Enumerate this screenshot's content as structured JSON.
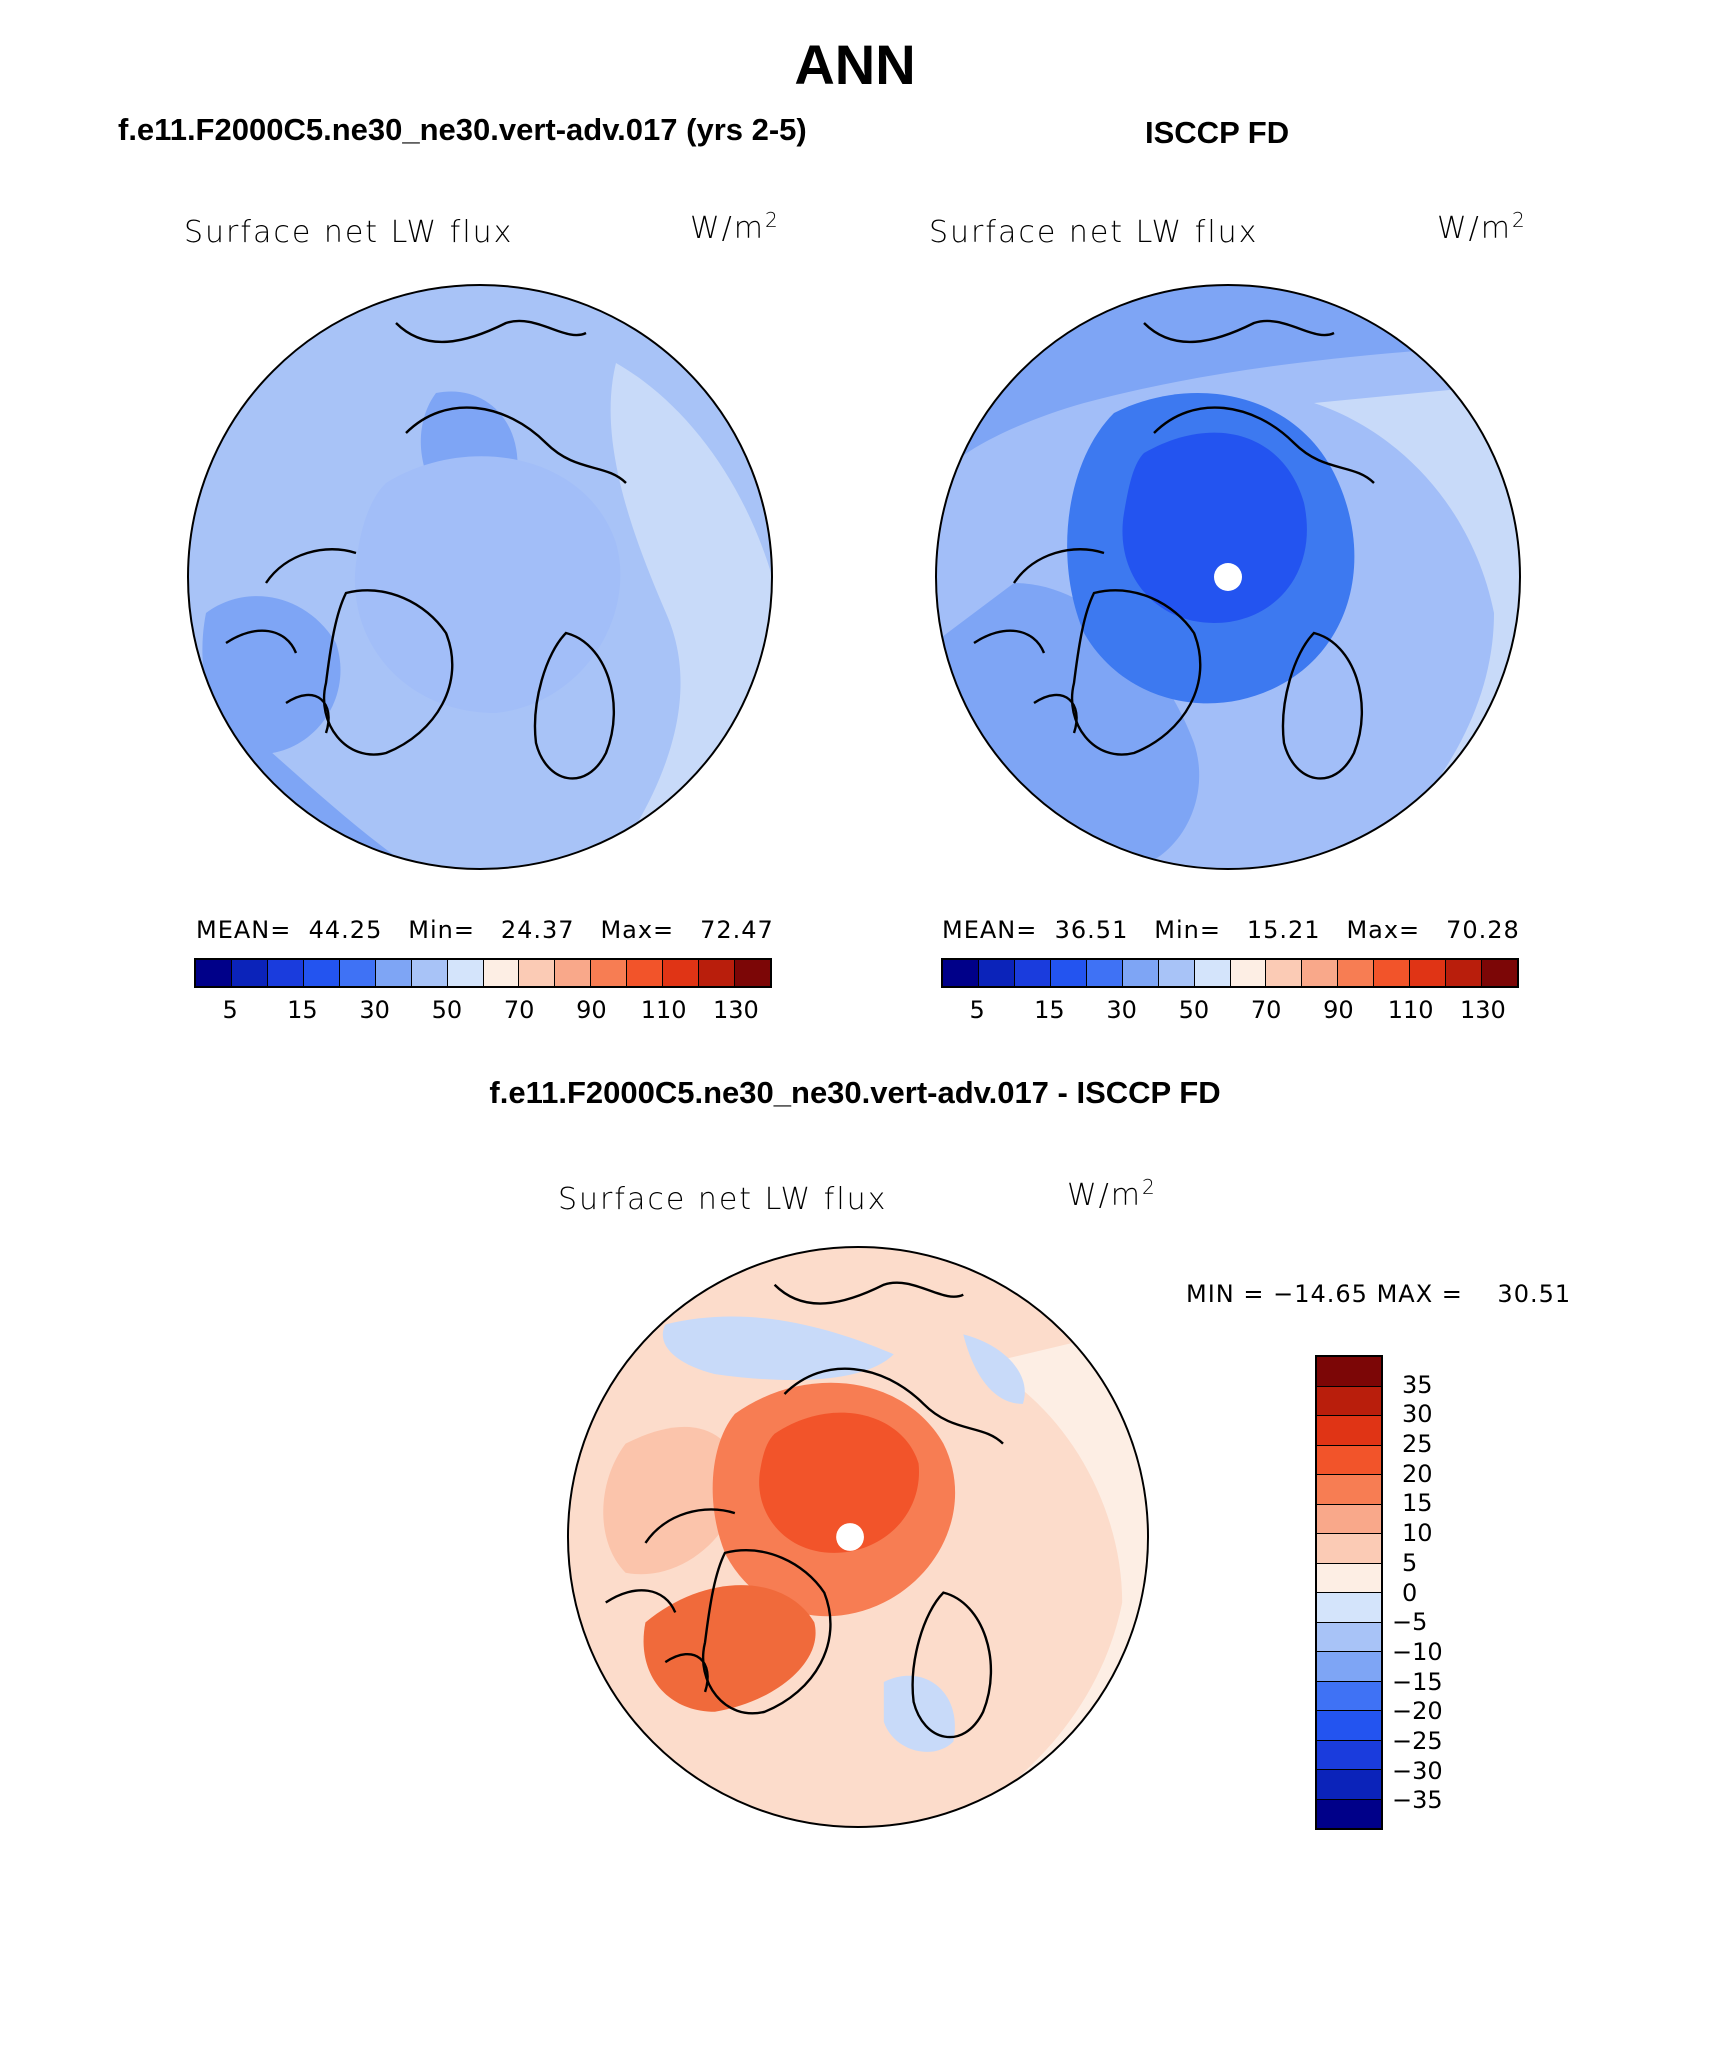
{
  "title": "ANN",
  "panels": [
    {
      "id": "model",
      "header": "f.e11.F2000C5.ne30_ne30.vert-adv.017 (yrs 2-5)",
      "variable": "Surface net LW flux",
      "units": "W/m",
      "units_sup": "2",
      "stats": {
        "mean_label": "MEAN=",
        "mean": "44.25",
        "min_label": "Min=",
        "min": "24.37",
        "max_label": "Max=",
        "max": "72.47"
      },
      "colors": {
        "ocean": "#a8c3f7",
        "base": "#a2bef8",
        "deep": "#7ea5f5",
        "pale": "#c8daf9",
        "warm": "#fbd9c9"
      }
    },
    {
      "id": "obs",
      "header": "ISCCP FD",
      "variable": "Surface net LW flux",
      "units": "W/m",
      "units_sup": "2",
      "stats": {
        "mean_label": "MEAN=",
        "mean": "36.51",
        "min_label": "Min=",
        "min": "15.21",
        "max_label": "Max=",
        "max": "70.28"
      },
      "colors": {
        "ocean": "#a2bef8",
        "base": "#8daef6",
        "deep": "#3d79f0",
        "pale": "#c8daf9",
        "warm": "#fbd9c9"
      }
    },
    {
      "id": "diff",
      "header": "f.e11.F2000C5.ne30_ne30.vert-adv.017 - ISCCP FD",
      "variable": "Surface net LW flux",
      "units": "W/m",
      "units_sup": "2",
      "stats": {
        "min_label": "MIN =",
        "min": "−14.65",
        "max_label": "MAX =",
        "max": "30.51"
      },
      "colors": {
        "ocean": "#fcdccb",
        "base": "#fbc4ab",
        "deep": "#f06a3b",
        "pale": "#fdeee4",
        "cool": "#c8daf9"
      }
    }
  ],
  "colorbar_abs": {
    "colors": [
      "#000089",
      "#0b23ba",
      "#1a3cdd",
      "#2354f0",
      "#3f72f5",
      "#7ea5f5",
      "#a8c3f7",
      "#d4e4fb",
      "#fdeee4",
      "#fbcbb5",
      "#f9a88a",
      "#f77d53",
      "#f2542a",
      "#e03415",
      "#b91e0c",
      "#7c0606"
    ],
    "labels": [
      "5",
      "15",
      "30",
      "50",
      "70",
      "90",
      "110",
      "130"
    ]
  },
  "colorbar_diff": {
    "colors": [
      "#7c0606",
      "#b91e0c",
      "#e03415",
      "#f2542a",
      "#f77d53",
      "#f9a88a",
      "#fbcbb5",
      "#fdeee4",
      "#d4e4fb",
      "#a8c3f7",
      "#7ea5f5",
      "#3f72f5",
      "#2354f0",
      "#1a3cdd",
      "#0b23ba",
      "#000089"
    ],
    "labels": [
      "35",
      "30",
      "25",
      "20",
      "15",
      "10",
      "5",
      "0",
      "−5",
      "−10",
      "−15",
      "−20",
      "−25",
      "−30",
      "−35"
    ]
  }
}
